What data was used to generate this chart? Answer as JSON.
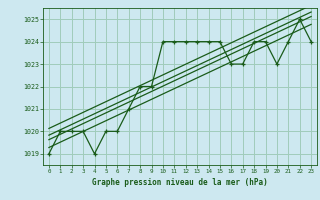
{
  "title": "Graphe pression niveau de la mer (hPa)",
  "bg_color": "#cde8f0",
  "grid_color": "#a0ccbb",
  "line_color": "#1a5c1a",
  "text_color": "#1a5c1a",
  "xlim": [
    -0.5,
    23.5
  ],
  "ylim": [
    1018.5,
    1025.5
  ],
  "yticks": [
    1019,
    1020,
    1021,
    1022,
    1023,
    1024,
    1025
  ],
  "xticks": [
    0,
    1,
    2,
    3,
    4,
    5,
    6,
    7,
    8,
    9,
    10,
    11,
    12,
    13,
    14,
    15,
    16,
    17,
    18,
    19,
    20,
    21,
    22,
    23
  ],
  "main_series": [
    1019,
    1020,
    1020,
    1020,
    1019,
    1020,
    1020,
    1021,
    1022,
    1022,
    1024,
    1024,
    1024,
    1024,
    1024,
    1024,
    1023,
    1023,
    1024,
    1024,
    1023,
    1024,
    1025,
    1024
  ],
  "trend_offsets": [
    -0.35,
    0.0,
    0.2,
    0.5
  ]
}
